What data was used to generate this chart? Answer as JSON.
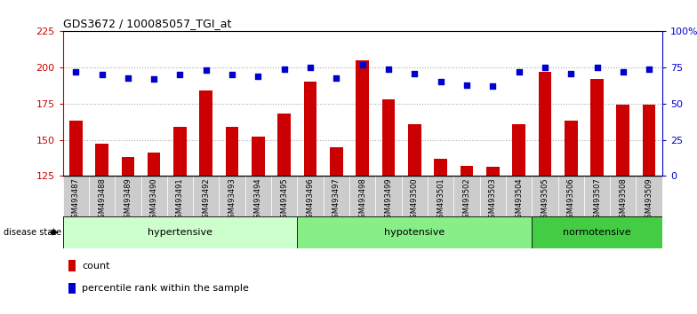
{
  "title": "GDS3672 / 100085057_TGI_at",
  "samples": [
    "GSM493487",
    "GSM493488",
    "GSM493489",
    "GSM493490",
    "GSM493491",
    "GSM493492",
    "GSM493493",
    "GSM493494",
    "GSM493495",
    "GSM493496",
    "GSM493497",
    "GSM493498",
    "GSM493499",
    "GSM493500",
    "GSM493501",
    "GSM493502",
    "GSM493503",
    "GSM493504",
    "GSM493505",
    "GSM493506",
    "GSM493507",
    "GSM493508",
    "GSM493509"
  ],
  "counts": [
    163,
    147,
    138,
    141,
    159,
    184,
    159,
    152,
    168,
    190,
    145,
    205,
    178,
    161,
    137,
    132,
    131,
    161,
    197,
    163,
    192,
    174,
    174
  ],
  "percentile_ranks": [
    72,
    70,
    68,
    67,
    70,
    73,
    70,
    69,
    74,
    75,
    68,
    77,
    74,
    71,
    65,
    63,
    62,
    72,
    75,
    71,
    75,
    72,
    74
  ],
  "groups": [
    {
      "label": "hypertensive",
      "start": 0,
      "end": 8,
      "color": "#ccffcc",
      "border": "#006600"
    },
    {
      "label": "hypotensive",
      "start": 9,
      "end": 17,
      "color": "#88ee88",
      "border": "#006600"
    },
    {
      "label": "normotensive",
      "start": 18,
      "end": 22,
      "color": "#44cc44",
      "border": "#006600"
    }
  ],
  "ylim_left": [
    125,
    225
  ],
  "ylim_right": [
    0,
    100
  ],
  "yticks_left": [
    125,
    150,
    175,
    200,
    225
  ],
  "yticks_right": [
    0,
    25,
    50,
    75,
    100
  ],
  "bar_color": "#cc0000",
  "dot_color": "#0000cc",
  "grid_color": "#aaaaaa",
  "plot_bg": "#ffffff",
  "xtick_bg": "#cccccc",
  "fig_bg": "#ffffff"
}
